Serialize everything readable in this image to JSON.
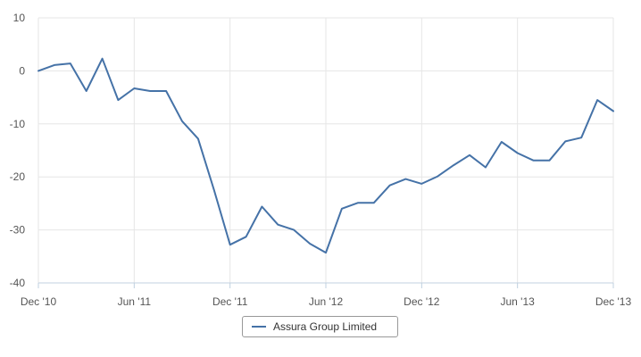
{
  "chart_data": {
    "type": "line",
    "title": "",
    "xlabel": "",
    "ylabel": "",
    "ylim": [
      -40,
      10
    ],
    "yticks": [
      10,
      0,
      -10,
      -20,
      -30,
      -40
    ],
    "xticks": [
      {
        "label": "Dec '10",
        "x": 0
      },
      {
        "label": "Jun '11",
        "x": 6
      },
      {
        "label": "Dec '11",
        "x": 12
      },
      {
        "label": "Jun '12",
        "x": 18
      },
      {
        "label": "Dec '12",
        "x": 24
      },
      {
        "label": "Jun '13",
        "x": 30
      },
      {
        "label": "Dec '13",
        "x": 36
      }
    ],
    "grid": true,
    "legend_position": "bottom-center",
    "series": [
      {
        "name": "Assura Group Limited",
        "color": "#4572a7",
        "x": [
          0,
          1,
          2,
          3,
          4,
          5,
          6,
          7,
          8,
          9,
          10,
          11,
          12,
          13,
          14,
          15,
          16,
          17,
          18,
          19,
          20,
          21,
          22,
          23,
          24,
          25,
          26,
          27,
          28,
          29,
          30,
          31,
          32,
          33,
          34,
          35,
          36
        ],
        "values": [
          0,
          1.1,
          1.4,
          -3.8,
          2.3,
          -5.5,
          -3.3,
          -3.8,
          -3.8,
          -9.5,
          -12.8,
          -22.5,
          -32.8,
          -31.3,
          -25.6,
          -29.0,
          -30.0,
          -32.6,
          -34.3,
          -26.0,
          -24.9,
          -24.9,
          -21.6,
          -20.4,
          -21.3,
          -19.9,
          -17.8,
          -15.9,
          -18.2,
          -13.4,
          -15.5,
          -16.9,
          -16.9,
          -13.3,
          -12.6,
          -5.5,
          -7.6
        ]
      }
    ]
  }
}
